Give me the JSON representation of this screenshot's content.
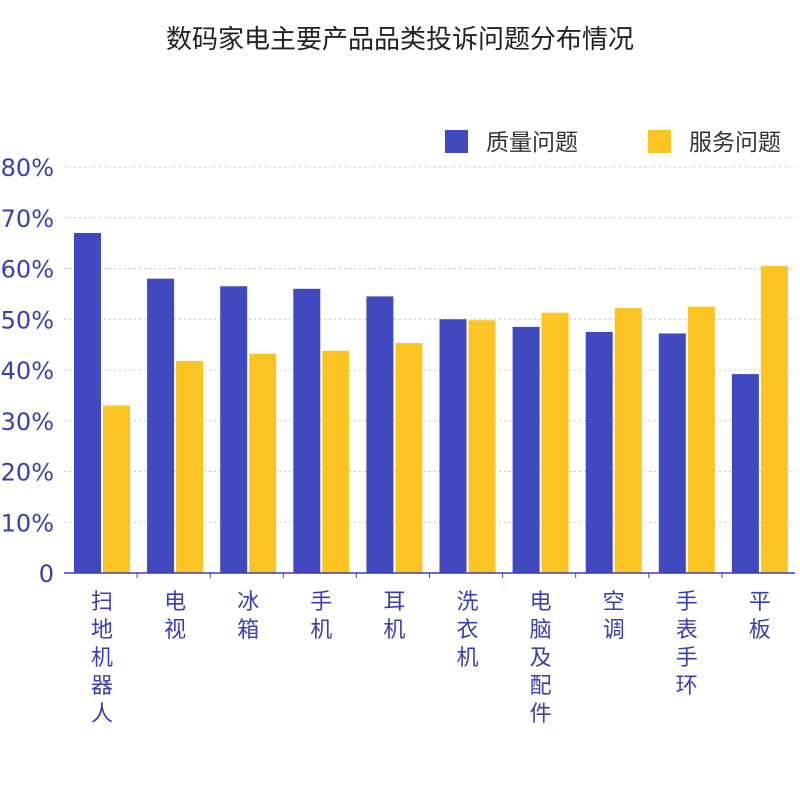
{
  "chart_data": {
    "type": "bar",
    "title": "数码家电主要产品品类投诉问题分布情况",
    "categories": [
      "扫地机器人",
      "电视",
      "冰箱",
      "手机",
      "耳机",
      "洗衣机",
      "电脑及配件",
      "空调",
      "手表手环",
      "平板"
    ],
    "series": [
      {
        "name": "质量问题",
        "color": "#4049bd",
        "values": [
          67,
          58,
          56.5,
          56,
          54.5,
          50,
          48.5,
          47.5,
          47.2,
          39.2
        ]
      },
      {
        "name": "服务问题",
        "color": "#fbc422",
        "values": [
          33,
          41.8,
          43.2,
          43.8,
          45.3,
          49.8,
          51.3,
          52.2,
          52.5,
          60.5
        ]
      }
    ],
    "ylim": [
      0,
      80
    ],
    "yticks": [
      0,
      10,
      20,
      30,
      40,
      50,
      60,
      70,
      80
    ],
    "ytick_labels": [
      "0",
      "10%",
      "20%",
      "30%",
      "40%",
      "50%",
      "60%",
      "70%",
      "80%"
    ],
    "grid": true,
    "legend_position": "top-right",
    "axis_color": "#3a3fb0"
  }
}
